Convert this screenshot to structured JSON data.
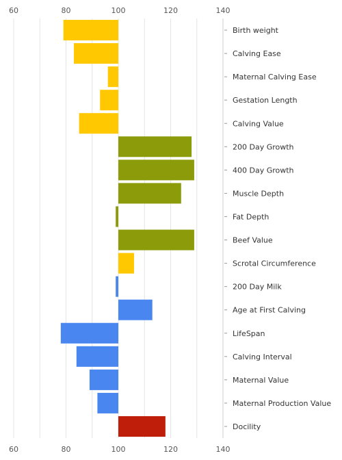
{
  "chart_data": {
    "type": "bar",
    "orientation": "horizontal",
    "title": "",
    "xlabel": "",
    "ylabel": "",
    "xlim": [
      60,
      140
    ],
    "x_ticks": [
      60,
      80,
      100,
      120,
      140
    ],
    "baseline": 100,
    "grid": true,
    "colors": {
      "calving": "#FFC800",
      "growth": "#8C9B0A",
      "maternal": "#4A86F0",
      "temperament": "#BE1E0A"
    },
    "categories": [
      "Birth weight",
      "Calving Ease",
      "Maternal Calving Ease",
      "Gestation Length",
      "Calving Value",
      "200 Day Growth",
      "400 Day Growth",
      "Muscle Depth",
      "Fat Depth",
      "Beef Value",
      "Scrotal Circumference",
      "200 Day Milk",
      "Age at First Calving",
      "LifeSpan",
      "Calving Interval",
      "Maternal Value",
      "Maternal Production Value",
      "Docility"
    ],
    "values": [
      79,
      83,
      96,
      93,
      85,
      128,
      129,
      124,
      99,
      129,
      106,
      99,
      113,
      78,
      84,
      89,
      92,
      118
    ],
    "groups": [
      "calving",
      "calving",
      "calving",
      "calving",
      "calving",
      "growth",
      "growth",
      "growth",
      "growth",
      "growth",
      "calving",
      "maternal",
      "maternal",
      "maternal",
      "maternal",
      "maternal",
      "maternal",
      "temperament"
    ]
  }
}
